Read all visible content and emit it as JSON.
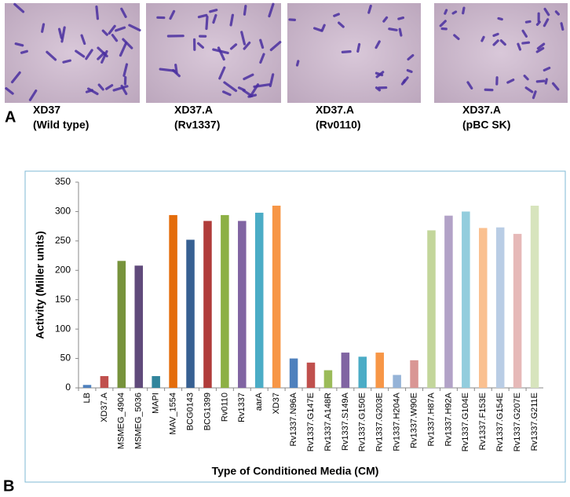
{
  "panel_a": {
    "label": "A",
    "images": [
      {
        "caption_line1": "XD37",
        "caption_line2": "(Wild type)"
      },
      {
        "caption_line1": "XD37.A",
        "caption_line2": "(Rv1337)"
      },
      {
        "caption_line1": "XD37.A",
        "caption_line2": "(Rv0110)"
      },
      {
        "caption_line1": "XD37.A",
        "caption_line2": "(pBC SK)"
      }
    ]
  },
  "panel_b": {
    "label": "B"
  },
  "chart_data": {
    "type": "bar",
    "x_label": "Type of Conditioned Media (CM)",
    "y_label": "Activity (Miller units)",
    "categories": [
      "LB",
      "XD37.A",
      "MSMEG_4904",
      "MSMEG_5036",
      "MAPI",
      "MAV_1554",
      "BCG0143",
      "BCG1399",
      "Rv0110",
      "Rv1337",
      "aarA",
      "XD37",
      "Rv1337.N96A",
      "Rv1337.G147E",
      "Rv1337.A148R",
      "Rv1337.S149A",
      "Rv1337.G150E",
      "Rv1337.G203E",
      "Rv1337.H204A",
      "Rv1337.W90E",
      "Rv1337.H87A",
      "Rv1337.H92A",
      "Rv1337.G104E",
      "Rv1337.F153E",
      "Rv1337.G154E",
      "Rv1337.G207E",
      "Rv1337.G211E"
    ],
    "values": [
      5,
      20,
      216,
      208,
      20,
      294,
      252,
      284,
      294,
      284,
      298,
      310,
      50,
      43,
      30,
      60,
      53,
      60,
      22,
      47,
      268,
      293,
      300,
      272,
      273,
      262,
      310
    ],
    "colors": [
      "#4f81bd",
      "#c0504d",
      "#77933c",
      "#604a7b",
      "#31859c",
      "#e46c0a",
      "#376092",
      "#b03c3a",
      "#8db045",
      "#8064a2",
      "#4bacc6",
      "#f79646",
      "#4f81bd",
      "#c0504d",
      "#9bbb59",
      "#8064a2",
      "#4bacc6",
      "#f79646",
      "#95b3d7",
      "#d99694",
      "#c3d69b",
      "#b2a2c7",
      "#93cddd",
      "#fac090",
      "#b9cde5",
      "#e6b9b8",
      "#d7e4bd"
    ],
    "ylim": [
      0,
      350
    ],
    "yticks": [
      0,
      50,
      100,
      150,
      200,
      250,
      300,
      350
    ],
    "grid": false
  }
}
